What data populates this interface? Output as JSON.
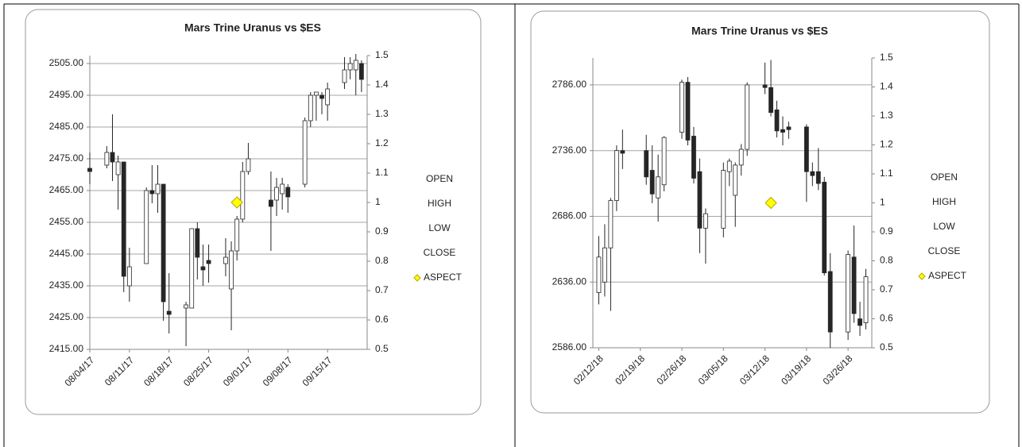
{
  "chart_data": [
    {
      "type": "candlestick",
      "title": "Mars Trine Uranus vs $ES",
      "x": [
        "08/04/17",
        "08/07/17",
        "08/08/17",
        "08/09/17",
        "08/10/17",
        "08/11/17",
        "08/14/17",
        "08/15/17",
        "08/16/17",
        "08/17/17",
        "08/18/17",
        "08/21/17",
        "08/22/17",
        "08/23/17",
        "08/24/17",
        "08/25/17",
        "08/28/17",
        "08/29/17",
        "08/30/17",
        "08/31/17",
        "09/01/17",
        "09/05/17",
        "09/06/17",
        "09/07/17",
        "09/08/17",
        "09/11/17",
        "09/12/17",
        "09/13/17",
        "09/14/17",
        "09/15/17",
        "09/18/17",
        "09/19/17",
        "09/20/17",
        "09/21/17"
      ],
      "xlim": [
        "08/04/17",
        "09/22/17"
      ],
      "xticks": [
        "08/04/17",
        "08/11/17",
        "08/18/17",
        "08/25/17",
        "09/01/17",
        "09/08/17",
        "09/15/17"
      ],
      "ylim": [
        2415,
        2507.5
      ],
      "yticks": [
        {
          "value": 2415,
          "label": "2415.00"
        },
        {
          "value": 2425,
          "label": "2425.00"
        },
        {
          "value": 2435,
          "label": "2435.00"
        },
        {
          "value": 2445,
          "label": "2445.00"
        },
        {
          "value": 2455,
          "label": "2455.00"
        },
        {
          "value": 2465,
          "label": "2465.00"
        },
        {
          "value": 2475,
          "label": "2475.00"
        },
        {
          "value": 2485,
          "label": "2485.00"
        },
        {
          "value": 2495,
          "label": "2495.00"
        },
        {
          "value": 2505,
          "label": "2505.00"
        }
      ],
      "y2lim": [
        0.5,
        1.5
      ],
      "y2ticks": [
        0.5,
        0.6,
        0.7,
        0.8,
        0.9,
        1,
        1.1,
        1.2,
        1.3,
        1.4,
        1.5
      ],
      "grid": true,
      "up_color": "#ffffff",
      "down_color": "#262626",
      "series": [
        {
          "name": "OPEN",
          "values": [
            2472,
            2473,
            2477,
            2470,
            2474,
            2435,
            2442,
            2465,
            2464,
            2467,
            2427,
            2428,
            2428,
            2453,
            2441,
            2443,
            2442,
            2434,
            2446,
            2456,
            2471,
            2462,
            2462,
            2464,
            2466,
            2467,
            2487,
            2495,
            2495,
            2492,
            2499,
            2503,
            2503,
            2505
          ]
        },
        {
          "name": "HIGH",
          "values": [
            2477,
            2479,
            2489,
            2476,
            2474,
            2447,
            2466,
            2473,
            2473,
            2467,
            2439,
            2430,
            2453,
            2455,
            2448,
            2448,
            2450,
            2449,
            2457,
            2474,
            2480,
            2471,
            2469,
            2469,
            2467,
            2488,
            2496,
            2496,
            2496,
            2499,
            2507,
            2507,
            2508,
            2506
          ]
        },
        {
          "name": "LOW",
          "values": [
            2467,
            2472,
            2468,
            2459,
            2433,
            2430,
            2442,
            2461,
            2458,
            2424,
            2420,
            2416,
            2428,
            2437,
            2435,
            2436,
            2438,
            2421,
            2443,
            2455,
            2470,
            2446,
            2457,
            2459,
            2458,
            2466,
            2485,
            2487,
            2489,
            2487,
            2497,
            2500,
            2495,
            2496
          ]
        },
        {
          "name": "CLOSE",
          "values": [
            2471,
            2477,
            2474,
            2474,
            2438,
            2441,
            2465,
            2464,
            2467,
            2430,
            2426,
            2429,
            2453,
            2444,
            2440,
            2442,
            2444,
            2446,
            2456,
            2471,
            2475,
            2460,
            2466,
            2467,
            2463,
            2487,
            2495,
            2496,
            2494,
            2497,
            2503,
            2505,
            2506,
            2500
          ]
        },
        {
          "name": "ASPECT",
          "axis": "y2",
          "color": "#ffff00",
          "x": [
            "08/30/17"
          ],
          "values": [
            1
          ]
        }
      ]
    },
    {
      "type": "candlestick",
      "title": "Mars Trine Uranus vs $ES",
      "x": [
        "02/12/18",
        "02/13/18",
        "02/14/18",
        "02/15/18",
        "02/16/18",
        "02/20/18",
        "02/21/18",
        "02/22/18",
        "02/23/18",
        "02/26/18",
        "02/27/18",
        "02/28/18",
        "03/01/18",
        "03/02/18",
        "03/05/18",
        "03/06/18",
        "03/07/18",
        "03/08/18",
        "03/09/18",
        "03/12/18",
        "03/13/18",
        "03/14/18",
        "03/15/18",
        "03/16/18",
        "03/19/18",
        "03/20/18",
        "03/21/18",
        "03/22/18",
        "03/23/18",
        "03/26/18",
        "03/27/18",
        "03/28/18",
        "03/29/18"
      ],
      "xlim": [
        "02/11/18",
        "03/30/18"
      ],
      "xticks": [
        "02/12/18",
        "02/19/18",
        "02/26/18",
        "03/05/18",
        "03/12/18",
        "03/19/18",
        "03/26/18"
      ],
      "ylim": [
        2586,
        2806.5
      ],
      "yticks": [
        {
          "value": 2586,
          "label": "2586.00"
        },
        {
          "value": 2636,
          "label": "2636.00"
        },
        {
          "value": 2686,
          "label": "2686.00"
        },
        {
          "value": 2736,
          "label": "2736.00"
        },
        {
          "value": 2786,
          "label": "2786.00"
        }
      ],
      "y2lim": [
        0.5,
        1.5
      ],
      "y2ticks": [
        0.5,
        0.6,
        0.7,
        0.8,
        0.9,
        1,
        1.1,
        1.2,
        1.3,
        1.4,
        1.5
      ],
      "grid": true,
      "up_color": "#ffffff",
      "down_color": "#262626",
      "series": [
        {
          "name": "OPEN",
          "values": [
            2628,
            2636,
            2662,
            2698,
            2736,
            2736,
            2721,
            2700,
            2710,
            2750,
            2788,
            2747,
            2720,
            2677,
            2677,
            2720,
            2702,
            2725,
            2737,
            2786,
            2784,
            2767,
            2752,
            2754,
            2754,
            2720,
            2720,
            2712,
            2644,
            2598,
            2655,
            2608,
            2605
          ]
        },
        {
          "name": "HIGH",
          "values": [
            2671,
            2680,
            2700,
            2740,
            2752,
            2748,
            2740,
            2733,
            2747,
            2790,
            2792,
            2754,
            2730,
            2692,
            2727,
            2730,
            2727,
            2741,
            2788,
            2803,
            2805,
            2774,
            2762,
            2758,
            2756,
            2727,
            2738,
            2716,
            2658,
            2660,
            2679,
            2621,
            2646
          ]
        },
        {
          "name": "LOW",
          "values": [
            2619,
            2625,
            2614,
            2690,
            2722,
            2710,
            2696,
            2682,
            2705,
            2745,
            2740,
            2711,
            2658,
            2650,
            2670,
            2709,
            2678,
            2717,
            2732,
            2779,
            2762,
            2746,
            2740,
            2745,
            2697,
            2709,
            2706,
            2641,
            2586,
            2592,
            2605,
            2595,
            2600
          ]
        },
        {
          "name": "CLOSE",
          "values": [
            2655,
            2662,
            2698,
            2736,
            2734,
            2716,
            2703,
            2716,
            2746,
            2788,
            2744,
            2715,
            2677,
            2688,
            2721,
            2728,
            2725,
            2737,
            2786,
            2784,
            2765,
            2751,
            2750,
            2752,
            2720,
            2717,
            2711,
            2643,
            2598,
            2657,
            2612,
            2603,
            2640
          ]
        },
        {
          "name": "ASPECT",
          "axis": "y2",
          "color": "#ffff00",
          "x": [
            "03/13/18"
          ],
          "values": [
            1
          ]
        }
      ]
    }
  ]
}
